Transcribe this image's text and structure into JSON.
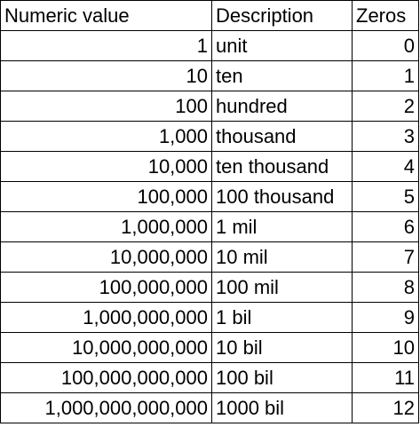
{
  "table": {
    "headers": {
      "numeric": "Numeric value",
      "description": "Description",
      "zeros": "Zeros"
    },
    "rows": [
      {
        "numeric": "1",
        "description": "unit",
        "zeros": "0"
      },
      {
        "numeric": "10",
        "description": "ten",
        "zeros": "1"
      },
      {
        "numeric": "100",
        "description": "hundred",
        "zeros": "2"
      },
      {
        "numeric": "1,000",
        "description": "thousand",
        "zeros": "3"
      },
      {
        "numeric": "10,000",
        "description": "ten thousand",
        "zeros": "4"
      },
      {
        "numeric": "100,000",
        "description": "100 thousand",
        "zeros": "5"
      },
      {
        "numeric": "1,000,000",
        "description": "1 mil",
        "zeros": "6"
      },
      {
        "numeric": "10,000,000",
        "description": "10 mil",
        "zeros": "7"
      },
      {
        "numeric": "100,000,000",
        "description": "100 mil",
        "zeros": "8"
      },
      {
        "numeric": "1,000,000,000",
        "description": "1 bil",
        "zeros": "9"
      },
      {
        "numeric": "10,000,000,000",
        "description": "10 bil",
        "zeros": "10"
      },
      {
        "numeric": "100,000,000,000",
        "description": "100 bil",
        "zeros": "11"
      },
      {
        "numeric": "1,000,000,000,000",
        "description": "1000 bil",
        "zeros": "12"
      }
    ]
  }
}
